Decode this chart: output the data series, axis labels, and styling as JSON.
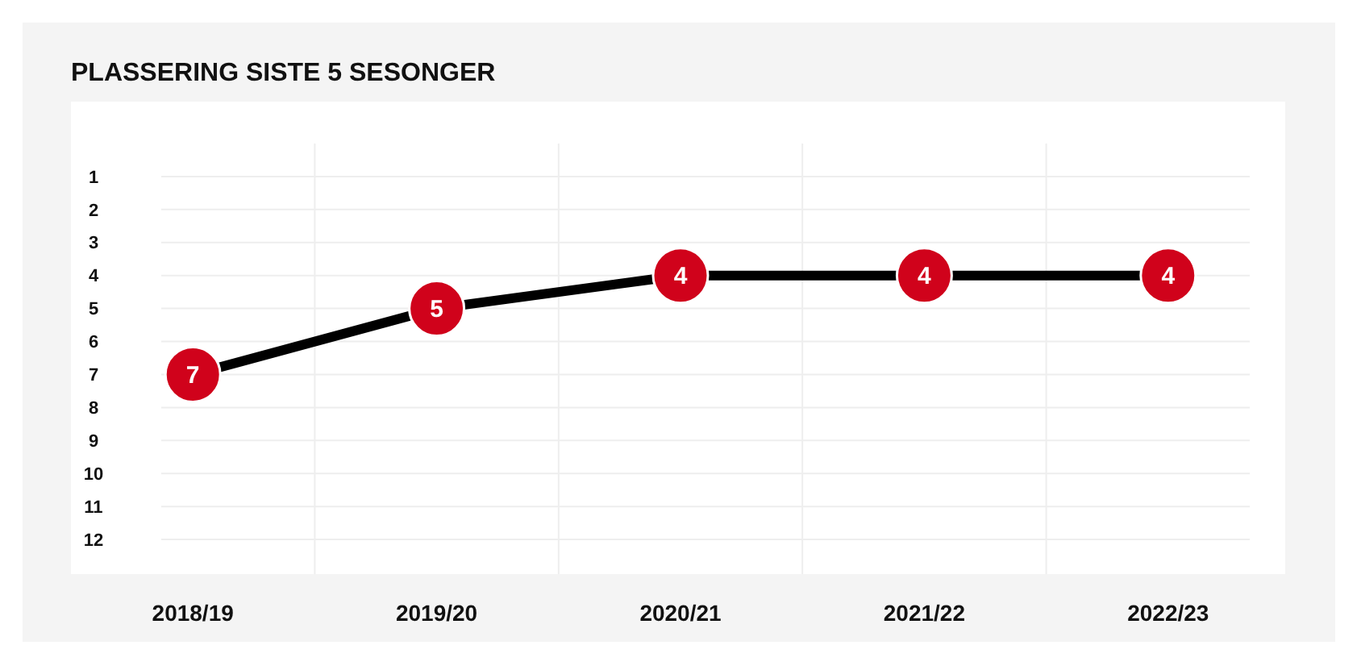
{
  "chart_data": {
    "type": "line",
    "title": "PLASSERING SISTE 5 SESONGER",
    "categories": [
      "2018/19",
      "2019/20",
      "2020/21",
      "2021/22",
      "2022/23"
    ],
    "series": [
      {
        "color": "#000000",
        "colors": [
          "#d0021b",
          "#d0021b",
          "#d0021b",
          "#d0021b",
          "#d0021b"
        ],
        "values": [
          7,
          5,
          4,
          4,
          4
        ]
      }
    ],
    "ylim": [
      13,
      0
    ],
    "yticks": [
      1,
      2,
      3,
      4,
      5,
      6,
      7,
      8,
      9,
      10,
      11,
      12
    ],
    "grid": true,
    "marker": "circle",
    "data_labels": true,
    "line_style": "solid"
  }
}
